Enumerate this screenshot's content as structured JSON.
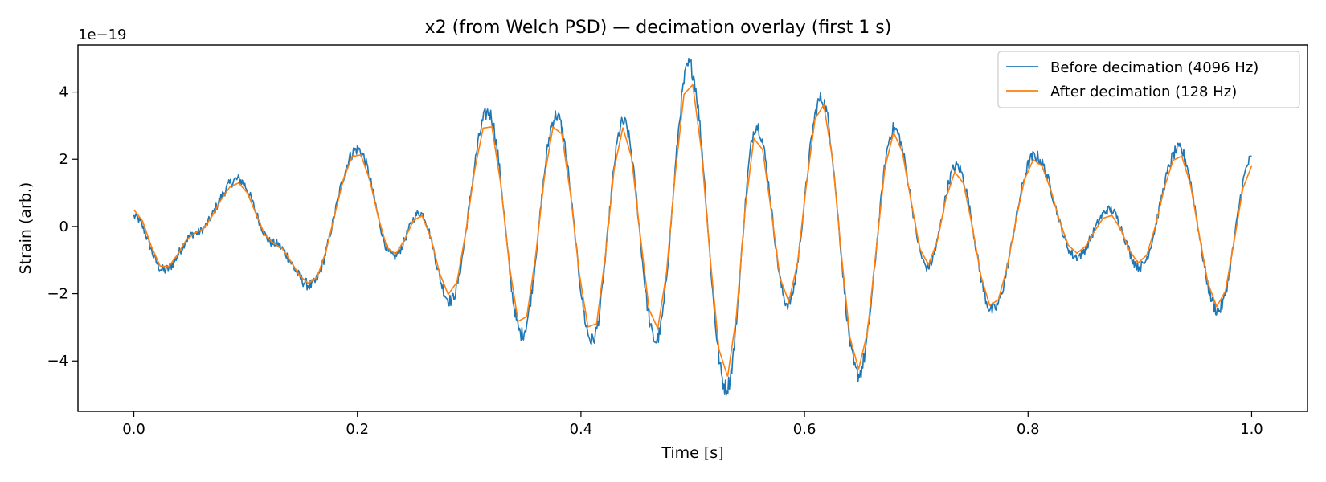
{
  "chart_data": {
    "type": "line",
    "title": "x2 (from Welch PSD) — decimation overlay (first 1 s)",
    "xlabel": "Time [s]",
    "ylabel": "Strain (arb.)",
    "y_offset_label": "1e−19",
    "xlim": [
      -0.05,
      1.05
    ],
    "ylim": [
      -5.5,
      5.4
    ],
    "xticks": [
      0.0,
      0.2,
      0.4,
      0.6,
      0.8,
      1.0
    ],
    "xtick_labels": [
      "0.0",
      "0.2",
      "0.4",
      "0.6",
      "0.8",
      "1.0"
    ],
    "yticks": [
      -4,
      -2,
      0,
      2,
      4
    ],
    "ytick_labels": [
      "−4",
      "−2",
      "0",
      "2",
      "4"
    ],
    "legend_position": "top-right",
    "colors": {
      "before": "#1f77b4",
      "after": "#ff7f0e"
    },
    "noise_amplitude": 0.12,
    "series": [
      {
        "name": "Before decimation (4096 Hz)",
        "sample_rate_hz": 4096,
        "envelope_x": [
          0.0,
          0.027,
          0.055,
          0.093,
          0.125,
          0.158,
          0.2,
          0.232,
          0.256,
          0.283,
          0.317,
          0.347,
          0.378,
          0.41,
          0.438,
          0.467,
          0.497,
          0.53,
          0.557,
          0.585,
          0.615,
          0.648,
          0.68,
          0.71,
          0.736,
          0.768,
          0.806,
          0.843,
          0.873,
          0.9,
          0.935,
          0.97,
          1.0
        ],
        "envelope_y": [
          0.3,
          -1.3,
          -0.2,
          1.4,
          -0.5,
          -1.75,
          2.3,
          -0.9,
          0.4,
          -2.2,
          3.4,
          -3.2,
          3.3,
          -3.4,
          3.1,
          -3.4,
          4.8,
          -4.8,
          3.0,
          -2.3,
          3.8,
          -4.4,
          2.9,
          -1.2,
          1.8,
          -2.5,
          2.1,
          -0.9,
          0.5,
          -1.2,
          2.3,
          -2.5,
          2.0
        ]
      },
      {
        "name": "After decimation (128 Hz)",
        "sample_rate_hz": 128,
        "envelope_x": [
          0.0,
          0.027,
          0.055,
          0.093,
          0.125,
          0.158,
          0.2,
          0.232,
          0.256,
          0.283,
          0.317,
          0.347,
          0.378,
          0.41,
          0.438,
          0.467,
          0.497,
          0.53,
          0.557,
          0.585,
          0.615,
          0.648,
          0.68,
          0.71,
          0.736,
          0.768,
          0.806,
          0.843,
          0.873,
          0.9,
          0.935,
          0.97,
          1.0
        ],
        "envelope_y": [
          0.5,
          -1.25,
          -0.2,
          1.3,
          -0.5,
          -1.7,
          2.2,
          -0.85,
          0.35,
          -2.05,
          3.15,
          -3.0,
          3.1,
          -3.2,
          2.95,
          -3.1,
          4.4,
          -4.5,
          2.75,
          -2.25,
          3.7,
          -4.25,
          2.8,
          -1.15,
          1.65,
          -2.4,
          2.0,
          -0.8,
          0.35,
          -1.1,
          2.15,
          -2.4,
          1.8
        ]
      }
    ]
  }
}
